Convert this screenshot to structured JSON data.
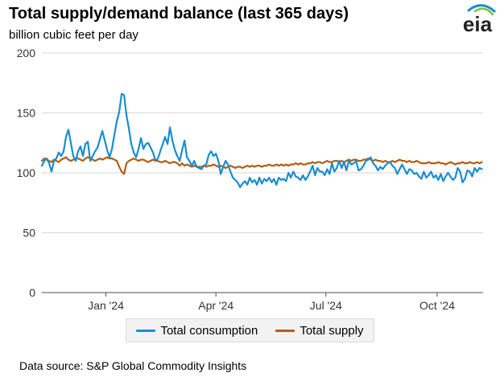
{
  "header": {
    "title": "Total supply/demand balance (last 365 days)",
    "subtitle": "billion cubic feet per day",
    "logo_text": "eia"
  },
  "footer": {
    "source": "Data source: S&P Global Commodity Insights"
  },
  "colors": {
    "consumption": "#1a8dd1",
    "supply": "#b35e14",
    "grid": "#d6d6d6",
    "axis": "#4d4d4d",
    "logo_text": "#222222",
    "logo_arc_blue": "#1a8dd1",
    "logo_arc_green": "#7cc242"
  },
  "chart_data": {
    "type": "line",
    "title": "Total supply/demand balance (last 365 days)",
    "ylabel": "billion cubic feet per day",
    "xlabel": "",
    "ylim": [
      0,
      200
    ],
    "yticks": [
      0,
      50,
      100,
      150,
      200
    ],
    "grid": true,
    "legend_position": "bottom",
    "x_range_days": [
      0,
      365
    ],
    "x_ticks": [
      {
        "day": 53,
        "label": "Jan '24"
      },
      {
        "day": 144,
        "label": "Apr '24"
      },
      {
        "day": 235,
        "label": "Jul '24"
      },
      {
        "day": 327,
        "label": "Oct '24"
      }
    ],
    "series": [
      {
        "name": "Total consumption",
        "x": [
          0,
          2,
          4,
          6,
          8,
          10,
          12,
          14,
          16,
          18,
          20,
          22,
          24,
          26,
          28,
          30,
          32,
          34,
          36,
          38,
          40,
          42,
          44,
          46,
          48,
          50,
          52,
          54,
          56,
          58,
          60,
          62,
          64,
          66,
          68,
          70,
          72,
          74,
          76,
          78,
          80,
          82,
          84,
          86,
          88,
          90,
          92,
          94,
          96,
          98,
          100,
          102,
          104,
          106,
          108,
          110,
          112,
          114,
          116,
          118,
          120,
          122,
          124,
          126,
          128,
          130,
          132,
          134,
          136,
          138,
          140,
          142,
          144,
          146,
          148,
          150,
          152,
          154,
          156,
          158,
          160,
          162,
          164,
          166,
          168,
          170,
          172,
          174,
          176,
          178,
          180,
          182,
          184,
          186,
          188,
          190,
          192,
          194,
          196,
          198,
          200,
          202,
          204,
          206,
          208,
          210,
          212,
          214,
          216,
          218,
          220,
          222,
          224,
          226,
          228,
          230,
          232,
          234,
          236,
          238,
          240,
          242,
          244,
          246,
          248,
          250,
          252,
          254,
          256,
          258,
          260,
          262,
          264,
          266,
          268,
          270,
          272,
          274,
          276,
          278,
          280,
          282,
          284,
          286,
          288,
          290,
          292,
          294,
          296,
          298,
          300,
          302,
          304,
          306,
          308,
          310,
          312,
          314,
          316,
          318,
          320,
          322,
          324,
          326,
          328,
          330,
          332,
          334,
          336,
          338,
          340,
          342,
          344,
          346,
          348,
          350,
          352,
          354,
          356,
          358,
          360,
          362,
          364
        ],
        "values": [
          106,
          110,
          112,
          108,
          101,
          110,
          112,
          117,
          114,
          118,
          130,
          136,
          125,
          114,
          110,
          118,
          122,
          114,
          124,
          126,
          110,
          114,
          118,
          121,
          128,
          135,
          127,
          119,
          113,
          120,
          132,
          143,
          151,
          166,
          165,
          148,
          137,
          124,
          117,
          113,
          120,
          129,
          120,
          124,
          125,
          121,
          117,
          110,
          112,
          118,
          124,
          130,
          124,
          138,
          127,
          119,
          114,
          110,
          119,
          127,
          113,
          110,
          106,
          110,
          105,
          104,
          103,
          106,
          107,
          115,
          118,
          114,
          116,
          110,
          99,
          105,
          110,
          107,
          101,
          96,
          94,
          92,
          88,
          91,
          93,
          90,
          96,
          92,
          94,
          90,
          96,
          91,
          95,
          93,
          96,
          92,
          95,
          90,
          96,
          94,
          95,
          93,
          100,
          96,
          101,
          97,
          96,
          94,
          98,
          94,
          97,
          101,
          106,
          98,
          104,
          101,
          101,
          98,
          103,
          99,
          108,
          101,
          104,
          110,
          104,
          109,
          102,
          110,
          107,
          108,
          110,
          102,
          103,
          106,
          110,
          111,
          113,
          108,
          106,
          102,
          105,
          103,
          106,
          108,
          109,
          106,
          104,
          99,
          103,
          107,
          103,
          99,
          103,
          102,
          99,
          100,
          97,
          95,
          101,
          96,
          98,
          101,
          96,
          98,
          94,
          99,
          93,
          97,
          100,
          97,
          94,
          96,
          104,
          101,
          92,
          95,
          102,
          101,
          97,
          104,
          101,
          104,
          103
        ]
      },
      {
        "name": "Total supply",
        "x": [
          0,
          2,
          4,
          6,
          8,
          10,
          12,
          14,
          16,
          18,
          20,
          22,
          24,
          26,
          28,
          30,
          32,
          34,
          36,
          38,
          40,
          42,
          44,
          46,
          48,
          50,
          52,
          54,
          56,
          58,
          60,
          62,
          64,
          66,
          68,
          70,
          72,
          74,
          76,
          78,
          80,
          82,
          84,
          86,
          88,
          90,
          92,
          94,
          96,
          98,
          100,
          102,
          104,
          106,
          108,
          110,
          112,
          114,
          116,
          118,
          120,
          122,
          124,
          126,
          128,
          130,
          132,
          134,
          136,
          138,
          140,
          142,
          144,
          146,
          148,
          150,
          152,
          154,
          156,
          158,
          160,
          162,
          164,
          166,
          168,
          170,
          172,
          174,
          176,
          178,
          180,
          182,
          184,
          186,
          188,
          190,
          192,
          194,
          196,
          198,
          200,
          202,
          204,
          206,
          208,
          210,
          212,
          214,
          216,
          218,
          220,
          222,
          224,
          226,
          228,
          230,
          232,
          234,
          236,
          238,
          240,
          242,
          244,
          246,
          248,
          250,
          252,
          254,
          256,
          258,
          260,
          262,
          264,
          266,
          268,
          270,
          272,
          274,
          276,
          278,
          280,
          282,
          284,
          286,
          288,
          290,
          292,
          294,
          296,
          298,
          300,
          302,
          304,
          306,
          308,
          310,
          312,
          314,
          316,
          318,
          320,
          322,
          324,
          326,
          328,
          330,
          332,
          334,
          336,
          338,
          340,
          342,
          344,
          346,
          348,
          350,
          352,
          354,
          356,
          358,
          360,
          362,
          364
        ],
        "values": [
          110,
          112,
          111,
          110,
          109,
          111,
          110,
          109,
          111,
          112,
          113,
          111,
          110,
          111,
          112,
          112,
          111,
          110,
          112,
          113,
          112,
          111,
          110,
          111,
          112,
          111,
          112,
          113,
          112,
          112,
          111,
          110,
          105,
          101,
          99,
          108,
          110,
          111,
          112,
          111,
          110,
          111,
          111,
          110,
          109,
          110,
          111,
          110,
          110,
          109,
          109,
          110,
          109,
          108,
          109,
          109,
          108,
          106,
          108,
          106,
          107,
          106,
          105,
          106,
          105,
          105,
          105,
          106,
          105,
          106,
          106,
          107,
          106,
          105,
          106,
          105,
          104,
          105,
          106,
          105,
          104,
          105,
          105,
          104,
          105,
          106,
          105,
          106,
          105,
          106,
          106,
          105,
          106,
          106,
          107,
          106,
          106,
          107,
          106,
          107,
          106,
          107,
          106,
          107,
          107,
          108,
          107,
          108,
          107,
          107,
          108,
          108,
          109,
          108,
          109,
          109,
          108,
          109,
          110,
          109,
          109,
          110,
          110,
          109,
          110,
          109,
          110,
          111,
          110,
          111,
          111,
          110,
          110,
          111,
          111,
          112,
          111,
          110,
          111,
          110,
          110,
          109,
          110,
          109,
          109,
          110,
          109,
          110,
          111,
          110,
          110,
          109,
          110,
          109,
          109,
          110,
          109,
          108,
          108,
          108,
          109,
          108,
          108,
          108,
          109,
          108,
          108,
          107,
          108,
          109,
          108,
          107,
          108,
          108,
          109,
          108,
          108,
          109,
          108,
          108,
          109,
          108,
          109
        ]
      }
    ]
  }
}
